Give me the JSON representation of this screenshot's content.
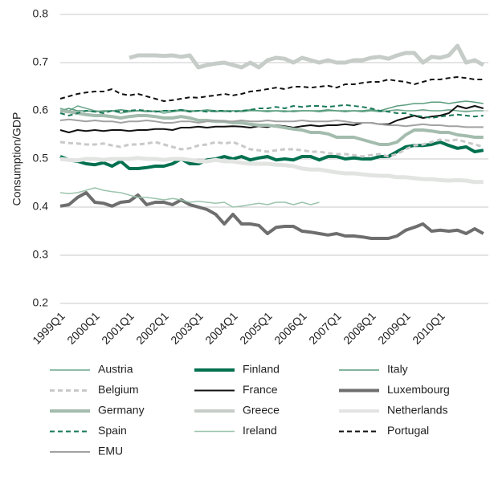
{
  "chart_data": {
    "type": "line",
    "y_label": "Consumption/GDP",
    "categories": [
      "1999Q1",
      null,
      null,
      null,
      "2000Q1",
      null,
      null,
      null,
      "2001Q1",
      null,
      null,
      null,
      "2002Q1",
      null,
      null,
      null,
      "2003Q1",
      null,
      null,
      null,
      "2004Q1",
      null,
      null,
      null,
      "2005Q1",
      null,
      null,
      null,
      "2006Q1",
      null,
      null,
      null,
      "2007Q1",
      null,
      null,
      null,
      "2008Q1",
      null,
      null,
      null,
      "2009Q1",
      null,
      null,
      null,
      "2010Q1",
      null,
      null,
      null,
      null,
      null
    ],
    "ylim": [
      0.2,
      0.8
    ],
    "yticks": [
      0.2,
      0.3,
      0.4,
      0.5,
      0.6,
      0.7,
      0.8
    ],
    "grid": true,
    "series": [
      {
        "name": "Austria",
        "color": "#6aa88c",
        "line_width": 1.5,
        "dashed": false,
        "values": [
          0.605,
          0.6,
          0.61,
          0.605,
          0.6,
          0.598,
          0.6,
          0.595,
          0.598,
          0.6,
          0.598,
          0.6,
          0.595,
          0.598,
          0.6,
          0.598,
          0.6,
          0.602,
          0.6,
          0.598,
          0.6,
          0.598,
          0.6,
          0.6,
          0.598,
          0.6,
          0.6,
          0.598,
          0.6,
          0.6,
          0.598,
          0.6,
          0.6,
          0.598,
          0.6,
          0.598,
          0.6,
          0.598,
          0.6,
          0.602,
          0.6,
          0.6,
          0.602,
          0.6,
          0.6,
          0.602,
          0.6,
          0.598,
          0.6,
          0.6
        ]
      },
      {
        "name": "Finland",
        "color": "#00704f",
        "line_width": 4,
        "dashed": false,
        "values": [
          0.505,
          0.498,
          0.495,
          0.49,
          0.488,
          0.492,
          0.485,
          0.495,
          0.48,
          0.48,
          0.482,
          0.485,
          0.485,
          0.49,
          0.5,
          0.49,
          0.49,
          0.498,
          0.5,
          0.505,
          0.5,
          0.505,
          0.498,
          0.502,
          0.505,
          0.498,
          0.5,
          0.498,
          0.505,
          0.505,
          0.498,
          0.505,
          0.505,
          0.5,
          0.502,
          0.5,
          0.5,
          0.505,
          0.505,
          0.515,
          0.525,
          0.528,
          0.528,
          0.53,
          0.535,
          0.528,
          0.522,
          0.525,
          0.515,
          0.518
        ]
      },
      {
        "name": "Italy",
        "color": "#5a9c7c",
        "line_width": 1.5,
        "dashed": false,
        "values": [
          0.6,
          0.605,
          0.6,
          0.6,
          0.598,
          0.6,
          0.6,
          0.602,
          0.6,
          0.6,
          0.6,
          0.598,
          0.6,
          0.6,
          0.602,
          0.6,
          0.6,
          0.6,
          0.598,
          0.6,
          0.6,
          0.6,
          0.602,
          0.6,
          0.6,
          0.6,
          0.598,
          0.6,
          0.6,
          0.6,
          0.6,
          0.602,
          0.6,
          0.6,
          0.6,
          0.6,
          0.602,
          0.6,
          0.605,
          0.61,
          0.612,
          0.615,
          0.615,
          0.618,
          0.618,
          0.615,
          0.618,
          0.62,
          0.618,
          0.615
        ]
      },
      {
        "name": "Belgium",
        "color": "#c9c9c9",
        "line_width": 3,
        "dashed": true,
        "values": [
          0.535,
          0.533,
          0.532,
          0.53,
          0.53,
          0.532,
          0.528,
          0.525,
          0.53,
          0.53,
          0.532,
          0.535,
          0.53,
          0.525,
          0.52,
          0.522,
          0.528,
          0.53,
          0.535,
          0.532,
          0.535,
          0.528,
          0.52,
          0.518,
          0.515,
          0.518,
          0.52,
          0.52,
          0.518,
          0.515,
          0.515,
          0.512,
          0.51,
          0.51,
          0.508,
          0.505,
          0.508,
          0.51,
          0.505,
          0.51,
          0.52,
          0.528,
          0.53,
          0.535,
          0.54,
          0.538,
          0.54,
          0.535,
          0.53,
          0.525
        ]
      },
      {
        "name": "France",
        "color": "#111111",
        "line_width": 2,
        "dashed": false,
        "values": [
          0.56,
          0.555,
          0.56,
          0.558,
          0.56,
          0.558,
          0.56,
          0.56,
          0.558,
          0.56,
          0.56,
          0.562,
          0.562,
          0.56,
          0.565,
          0.565,
          0.567,
          0.565,
          0.567,
          0.567,
          0.568,
          0.567,
          0.565,
          0.568,
          0.566,
          0.57,
          0.568,
          0.565,
          0.568,
          0.57,
          0.568,
          0.57,
          0.57,
          0.572,
          0.57,
          0.575,
          0.575,
          0.572,
          0.572,
          0.58,
          0.585,
          0.59,
          0.585,
          0.588,
          0.59,
          0.595,
          0.61,
          0.605,
          0.61,
          0.605
        ]
      },
      {
        "name": "Luxembourg",
        "color": "#6e6e6e",
        "line_width": 4,
        "dashed": false,
        "values": [
          0.402,
          0.405,
          0.42,
          0.43,
          0.41,
          0.408,
          0.402,
          0.41,
          0.412,
          0.425,
          0.405,
          0.41,
          0.41,
          0.405,
          0.415,
          0.405,
          0.4,
          0.395,
          0.385,
          0.365,
          0.385,
          0.365,
          0.365,
          0.362,
          0.345,
          0.358,
          0.36,
          0.36,
          0.35,
          0.348,
          0.345,
          0.342,
          0.345,
          0.34,
          0.34,
          0.338,
          0.335,
          0.335,
          0.335,
          0.34,
          0.352,
          0.358,
          0.365,
          0.35,
          0.352,
          0.35,
          0.352,
          0.345,
          0.355,
          0.345
        ]
      },
      {
        "name": "Germany",
        "color": "#a3bcae",
        "line_width": 4,
        "dashed": false,
        "values": [
          0.6,
          0.598,
          0.595,
          0.592,
          0.59,
          0.59,
          0.588,
          0.585,
          0.588,
          0.59,
          0.59,
          0.588,
          0.585,
          0.585,
          0.588,
          0.585,
          0.58,
          0.58,
          0.578,
          0.578,
          0.575,
          0.575,
          0.572,
          0.57,
          0.57,
          0.568,
          0.565,
          0.562,
          0.56,
          0.555,
          0.555,
          0.552,
          0.545,
          0.545,
          0.545,
          0.54,
          0.535,
          0.53,
          0.53,
          0.535,
          0.55,
          0.56,
          0.56,
          0.558,
          0.555,
          0.555,
          0.55,
          0.548,
          0.545,
          0.545
        ]
      },
      {
        "name": "Greece",
        "color": "#c6ccc8",
        "line_width": 5,
        "dashed": false,
        "values": [
          null,
          null,
          null,
          null,
          null,
          null,
          null,
          null,
          0.71,
          0.715,
          0.715,
          0.715,
          0.714,
          0.715,
          0.712,
          0.715,
          0.69,
          0.695,
          0.698,
          0.7,
          0.695,
          0.69,
          0.7,
          0.69,
          0.705,
          0.71,
          0.708,
          0.7,
          0.71,
          0.705,
          0.7,
          0.705,
          0.7,
          0.7,
          0.705,
          0.705,
          0.71,
          0.712,
          0.708,
          0.715,
          0.72,
          0.72,
          0.7,
          0.712,
          0.71,
          0.715,
          0.735,
          0.7,
          0.705,
          0.695
        ]
      },
      {
        "name": "Netherlands",
        "color": "#e2e4e2",
        "line_width": 5,
        "dashed": false,
        "values": [
          0.5,
          0.498,
          0.497,
          0.5,
          0.5,
          0.498,
          0.5,
          0.5,
          0.5,
          0.502,
          0.5,
          0.5,
          0.498,
          0.5,
          0.5,
          0.498,
          0.495,
          0.495,
          0.498,
          0.495,
          0.495,
          0.492,
          0.49,
          0.49,
          0.49,
          0.488,
          0.487,
          0.485,
          0.48,
          0.478,
          0.478,
          0.475,
          0.472,
          0.47,
          0.47,
          0.468,
          0.466,
          0.465,
          0.465,
          0.462,
          0.462,
          0.46,
          0.458,
          0.458,
          0.456,
          0.455,
          0.456,
          0.455,
          0.452,
          0.452
        ]
      },
      {
        "name": "Spain",
        "color": "#1a7a5a",
        "line_width": 2,
        "dashed": true,
        "values": [
          0.595,
          0.59,
          0.595,
          0.6,
          0.598,
          0.595,
          0.6,
          0.598,
          0.6,
          0.602,
          0.6,
          0.598,
          0.6,
          0.6,
          0.602,
          0.598,
          0.6,
          0.598,
          0.6,
          0.6,
          0.598,
          0.6,
          0.602,
          0.605,
          0.605,
          0.608,
          0.605,
          0.61,
          0.608,
          0.61,
          0.61,
          0.608,
          0.61,
          0.612,
          0.61,
          0.608,
          0.605,
          0.6,
          0.598,
          0.595,
          0.595,
          0.59,
          0.588,
          0.585,
          0.588,
          0.59,
          0.592,
          0.59,
          0.588,
          0.59
        ]
      },
      {
        "name": "Ireland",
        "color": "#9cc4ac",
        "line_width": 1.5,
        "dashed": false,
        "values": [
          0.43,
          0.428,
          0.43,
          0.435,
          0.44,
          0.435,
          0.432,
          0.43,
          0.425,
          0.42,
          0.42,
          0.418,
          0.415,
          0.418,
          0.415,
          0.41,
          0.412,
          0.41,
          0.408,
          0.41,
          0.4,
          0.402,
          0.405,
          0.408,
          0.405,
          0.41,
          0.41,
          0.405,
          0.41,
          0.405,
          0.41,
          null,
          null,
          null,
          null,
          null,
          null,
          null,
          null,
          null,
          null,
          null,
          null,
          null,
          null,
          null,
          null,
          null,
          null,
          null
        ]
      },
      {
        "name": "Portugal",
        "color": "#111111",
        "line_width": 2,
        "dashed": true,
        "values": [
          0.625,
          0.63,
          0.635,
          0.638,
          0.64,
          0.64,
          0.645,
          0.635,
          0.632,
          0.635,
          0.63,
          0.625,
          0.62,
          0.622,
          0.625,
          0.628,
          0.627,
          0.63,
          0.632,
          0.635,
          0.632,
          0.635,
          0.64,
          0.642,
          0.645,
          0.648,
          0.645,
          0.65,
          0.65,
          0.648,
          0.65,
          0.652,
          0.648,
          0.655,
          0.655,
          0.658,
          0.66,
          0.66,
          0.665,
          0.662,
          0.66,
          0.655,
          0.66,
          0.665,
          0.665,
          0.668,
          0.67,
          0.668,
          0.665,
          0.665
        ]
      },
      {
        "name": "EMU",
        "color": "#a2a2a2",
        "line_width": 2,
        "dashed": false,
        "values": [
          0.58,
          0.582,
          0.58,
          0.578,
          0.58,
          0.578,
          0.578,
          0.575,
          0.578,
          0.578,
          0.58,
          0.578,
          0.575,
          0.575,
          0.578,
          0.578,
          0.575,
          0.578,
          0.58,
          0.578,
          0.578,
          0.58,
          0.578,
          0.578,
          0.58,
          0.578,
          0.578,
          0.578,
          0.58,
          0.578,
          0.578,
          0.578,
          0.58,
          0.578,
          0.575,
          0.575,
          0.575,
          0.572,
          0.57,
          0.57,
          0.568,
          0.57,
          0.572,
          0.57,
          0.57,
          0.568,
          0.568,
          0.566,
          0.566,
          0.566
        ]
      }
    ]
  }
}
